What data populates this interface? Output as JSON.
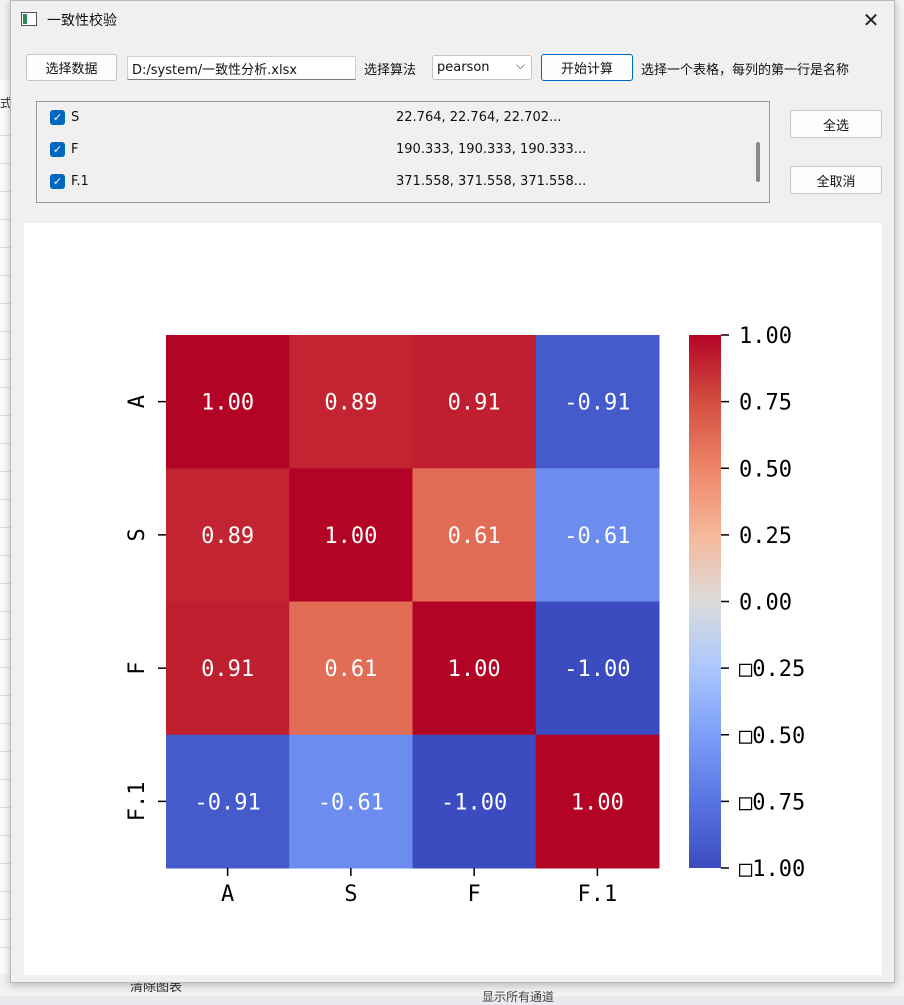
{
  "background": {
    "left_fragment": "式",
    "bottom_left_text": "清除图表",
    "bottom_mid_text": "显示所有通道"
  },
  "window": {
    "title": "一致性校验",
    "close_glyph": "✕"
  },
  "toolbar": {
    "select_data_label": "选择数据",
    "file_path": "D:/system/一致性分析.xlsx",
    "algo_label": "选择算法",
    "algo_value": "pearson",
    "compute_label": "开始计算",
    "hint": "选择一个表格，每列的第一行是名称"
  },
  "columns_list": {
    "rows": [
      {
        "name": "S",
        "values_preview": "22.764, 22.764, 22.702...",
        "checked": true
      },
      {
        "name": "F",
        "values_preview": "190.333, 190.333, 190.333...",
        "checked": true
      },
      {
        "name": "F.1",
        "values_preview": "371.558, 371.558, 371.558...",
        "checked": true
      }
    ]
  },
  "side_buttons": {
    "select_all": "全选",
    "deselect_all": "全取消"
  },
  "chart_data": {
    "type": "heatmap",
    "rows": [
      "A",
      "S",
      "F",
      "F.1"
    ],
    "cols": [
      "A",
      "S",
      "F",
      "F.1"
    ],
    "values": [
      [
        1.0,
        0.89,
        0.91,
        -0.91
      ],
      [
        0.89,
        1.0,
        0.61,
        -0.61
      ],
      [
        0.91,
        0.61,
        1.0,
        -1.0
      ],
      [
        -0.91,
        -0.61,
        -1.0,
        1.0
      ]
    ],
    "cell_labels": [
      [
        "1.00",
        "0.89",
        "0.91",
        "-0.91"
      ],
      [
        "0.89",
        "1.00",
        "0.61",
        "-0.61"
      ],
      [
        "0.91",
        "0.61",
        "1.00",
        "-1.00"
      ],
      [
        "-0.91",
        "-0.61",
        "-1.00",
        "1.00"
      ]
    ],
    "vmin": -1.0,
    "vmax": 1.0,
    "colormap": "coolwarm",
    "colorbar_ticks": [
      1.0,
      0.75,
      0.5,
      0.25,
      0.0,
      -0.25,
      -0.5,
      -0.75,
      -1.0
    ],
    "colorbar_labels": [
      "1.00",
      "0.75",
      "0.50",
      "0.25",
      "0.00",
      "□0.25",
      "□0.50",
      "□0.75",
      "□1.00"
    ]
  }
}
